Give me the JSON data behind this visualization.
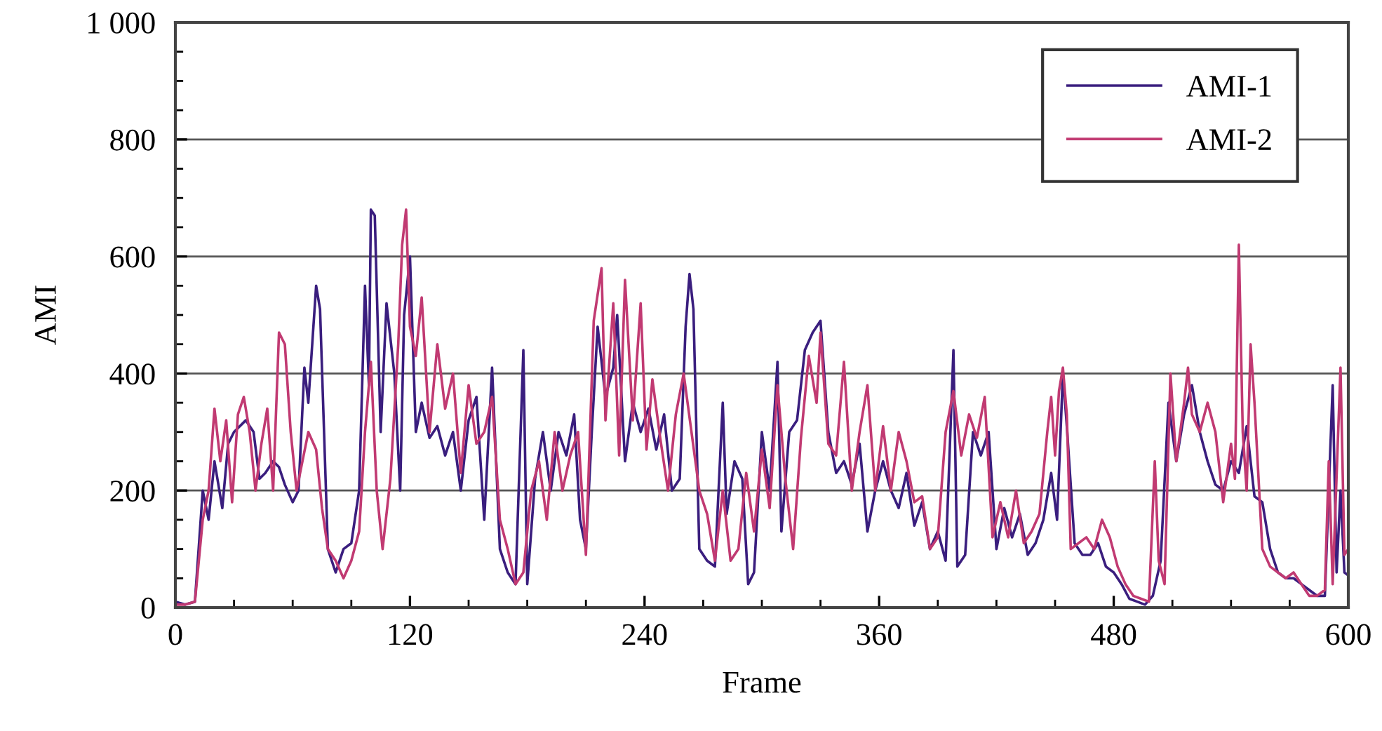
{
  "chart_data": {
    "type": "line",
    "xlabel": "Frame",
    "ylabel": "AMI",
    "xlim": [
      0,
      600
    ],
    "ylim": [
      0,
      1000
    ],
    "xticks": [
      0,
      {
        "value": 30,
        "label": null
      },
      {
        "value": 60,
        "label": null
      },
      {
        "value": 90,
        "label": null
      },
      120,
      {
        "value": 150,
        "label": null
      },
      {
        "value": 180,
        "label": null
      },
      {
        "value": 210,
        "label": null
      },
      240,
      {
        "value": 270,
        "label": null
      },
      {
        "value": 300,
        "label": null
      },
      {
        "value": 330,
        "label": null
      },
      360,
      {
        "value": 390,
        "label": null
      },
      {
        "value": 420,
        "label": null
      },
      {
        "value": 450,
        "label": null
      },
      480,
      {
        "value": 510,
        "label": null
      },
      {
        "value": 540,
        "label": null
      },
      {
        "value": 570,
        "label": null
      },
      600
    ],
    "yticks": [
      0,
      {
        "value": 50,
        "label": null
      },
      {
        "value": 100,
        "label": null
      },
      {
        "value": 150,
        "label": null
      },
      200,
      {
        "value": 250,
        "label": null
      },
      {
        "value": 300,
        "label": null
      },
      {
        "value": 350,
        "label": null
      },
      400,
      {
        "value": 450,
        "label": null
      },
      {
        "value": 500,
        "label": null
      },
      {
        "value": 550,
        "label": null
      },
      600,
      {
        "value": 650,
        "label": null
      },
      {
        "value": 700,
        "label": null
      },
      {
        "value": 750,
        "label": null
      },
      800,
      {
        "value": 850,
        "label": null
      },
      {
        "value": 900,
        "label": null
      },
      {
        "value": 950,
        "label": null
      },
      {
        "value": 1000,
        "label": "1 000"
      }
    ],
    "grid": "y",
    "legend": "top right",
    "marker": "none",
    "line_style": "solid",
    "series": [
      {
        "name": "AMI-1",
        "color": "#3a1e7e",
        "x": [
          0,
          5,
          10,
          14,
          17,
          20,
          24,
          27,
          30,
          33,
          36,
          40,
          43,
          46,
          50,
          53,
          56,
          60,
          63,
          66,
          68,
          72,
          74,
          78,
          82,
          86,
          90,
          94,
          97,
          99,
          100,
          102,
          105,
          108,
          112,
          115,
          117,
          120,
          123,
          126,
          130,
          134,
          138,
          142,
          146,
          150,
          154,
          158,
          162,
          166,
          170,
          174,
          178,
          180,
          184,
          188,
          192,
          196,
          200,
          204,
          207,
          210,
          213,
          216,
          220,
          224,
          226,
          230,
          234,
          238,
          242,
          246,
          250,
          254,
          258,
          261,
          263,
          265,
          268,
          272,
          276,
          280,
          282,
          286,
          290,
          293,
          296,
          300,
          304,
          308,
          310,
          314,
          318,
          322,
          326,
          330,
          334,
          338,
          342,
          346,
          350,
          354,
          358,
          362,
          366,
          370,
          374,
          378,
          382,
          386,
          390,
          394,
          398,
          400,
          404,
          408,
          412,
          416,
          420,
          424,
          428,
          432,
          436,
          440,
          444,
          448,
          451,
          454,
          456,
          460,
          464,
          468,
          472,
          476,
          480,
          484,
          488,
          492,
          496,
          500,
          504,
          508,
          512,
          516,
          520,
          524,
          528,
          532,
          536,
          540,
          544,
          548,
          550,
          552,
          556,
          560,
          564,
          568,
          572,
          576,
          580,
          584,
          588,
          592,
          594,
          596,
          598,
          600
        ],
        "values": [
          10,
          5,
          10,
          200,
          150,
          250,
          170,
          280,
          300,
          310,
          320,
          300,
          220,
          230,
          250,
          240,
          210,
          180,
          200,
          410,
          350,
          550,
          510,
          100,
          60,
          100,
          110,
          200,
          550,
          380,
          680,
          670,
          300,
          520,
          400,
          200,
          500,
          600,
          300,
          350,
          290,
          310,
          260,
          300,
          200,
          320,
          360,
          150,
          410,
          100,
          60,
          40,
          440,
          40,
          220,
          300,
          200,
          300,
          260,
          330,
          150,
          100,
          300,
          480,
          360,
          410,
          500,
          250,
          350,
          300,
          340,
          270,
          330,
          200,
          220,
          480,
          570,
          510,
          100,
          80,
          70,
          350,
          160,
          250,
          220,
          40,
          60,
          300,
          200,
          420,
          130,
          300,
          320,
          440,
          470,
          490,
          300,
          230,
          250,
          210,
          280,
          130,
          200,
          250,
          200,
          170,
          230,
          140,
          180,
          100,
          130,
          80,
          440,
          70,
          90,
          300,
          260,
          300,
          100,
          170,
          120,
          160,
          90,
          110,
          150,
          230,
          150,
          400,
          310,
          110,
          90,
          90,
          110,
          70,
          60,
          40,
          15,
          10,
          5,
          20,
          80,
          350,
          250,
          330,
          380,
          300,
          250,
          210,
          200,
          250,
          230,
          310,
          250,
          190,
          180,
          100,
          60,
          50,
          50,
          40,
          30,
          20,
          20,
          380,
          60,
          200,
          60,
          55
        ]
      },
      {
        "name": "AMI-2",
        "color": "#c13a72",
        "x": [
          0,
          5,
          10,
          14,
          17,
          20,
          23,
          26,
          29,
          32,
          35,
          38,
          41,
          44,
          47,
          50,
          53,
          56,
          59,
          62,
          65,
          68,
          72,
          75,
          78,
          82,
          86,
          90,
          94,
          97,
          100,
          103,
          106,
          110,
          114,
          116,
          118,
          120,
          123,
          126,
          130,
          134,
          138,
          142,
          146,
          150,
          154,
          158,
          162,
          166,
          170,
          174,
          178,
          182,
          186,
          190,
          194,
          198,
          202,
          206,
          210,
          214,
          218,
          220,
          224,
          227,
          230,
          234,
          238,
          241,
          244,
          248,
          252,
          256,
          260,
          264,
          268,
          272,
          276,
          280,
          284,
          288,
          292,
          296,
          300,
          304,
          308,
          312,
          316,
          320,
          324,
          328,
          330,
          334,
          338,
          342,
          346,
          350,
          354,
          358,
          362,
          366,
          370,
          374,
          378,
          382,
          386,
          390,
          394,
          398,
          402,
          406,
          410,
          414,
          418,
          422,
          426,
          430,
          434,
          438,
          442,
          446,
          448,
          450,
          452,
          454,
          456,
          458,
          462,
          466,
          470,
          474,
          478,
          482,
          486,
          490,
          494,
          498,
          501,
          503,
          506,
          509,
          512,
          516,
          518,
          520,
          524,
          528,
          532,
          536,
          540,
          542,
          544,
          546,
          548,
          550,
          552,
          556,
          560,
          564,
          568,
          572,
          576,
          580,
          584,
          588,
          590,
          592,
          596,
          598,
          600
        ],
        "values": [
          5,
          5,
          10,
          150,
          200,
          340,
          250,
          320,
          180,
          330,
          360,
          300,
          200,
          280,
          340,
          200,
          470,
          450,
          300,
          200,
          250,
          300,
          270,
          170,
          100,
          80,
          50,
          80,
          130,
          300,
          420,
          200,
          100,
          220,
          450,
          620,
          680,
          480,
          430,
          530,
          300,
          450,
          340,
          400,
          230,
          380,
          280,
          300,
          360,
          150,
          100,
          40,
          60,
          200,
          250,
          150,
          300,
          200,
          260,
          300,
          90,
          490,
          580,
          320,
          520,
          260,
          560,
          320,
          520,
          270,
          390,
          290,
          200,
          330,
          400,
          300,
          200,
          160,
          80,
          200,
          80,
          100,
          230,
          130,
          270,
          170,
          380,
          220,
          100,
          290,
          430,
          350,
          470,
          280,
          260,
          420,
          200,
          300,
          380,
          200,
          310,
          200,
          300,
          250,
          180,
          190,
          100,
          120,
          300,
          370,
          260,
          330,
          290,
          360,
          120,
          180,
          120,
          200,
          110,
          130,
          160,
          300,
          360,
          260,
          370,
          410,
          330,
          100,
          110,
          120,
          100,
          150,
          120,
          70,
          40,
          20,
          15,
          10,
          250,
          80,
          40,
          400,
          250,
          350,
          410,
          330,
          300,
          350,
          300,
          180,
          280,
          220,
          620,
          300,
          200,
          450,
          350,
          100,
          70,
          60,
          50,
          60,
          40,
          20,
          20,
          30,
          250,
          40,
          410,
          90,
          100
        ]
      }
    ]
  }
}
